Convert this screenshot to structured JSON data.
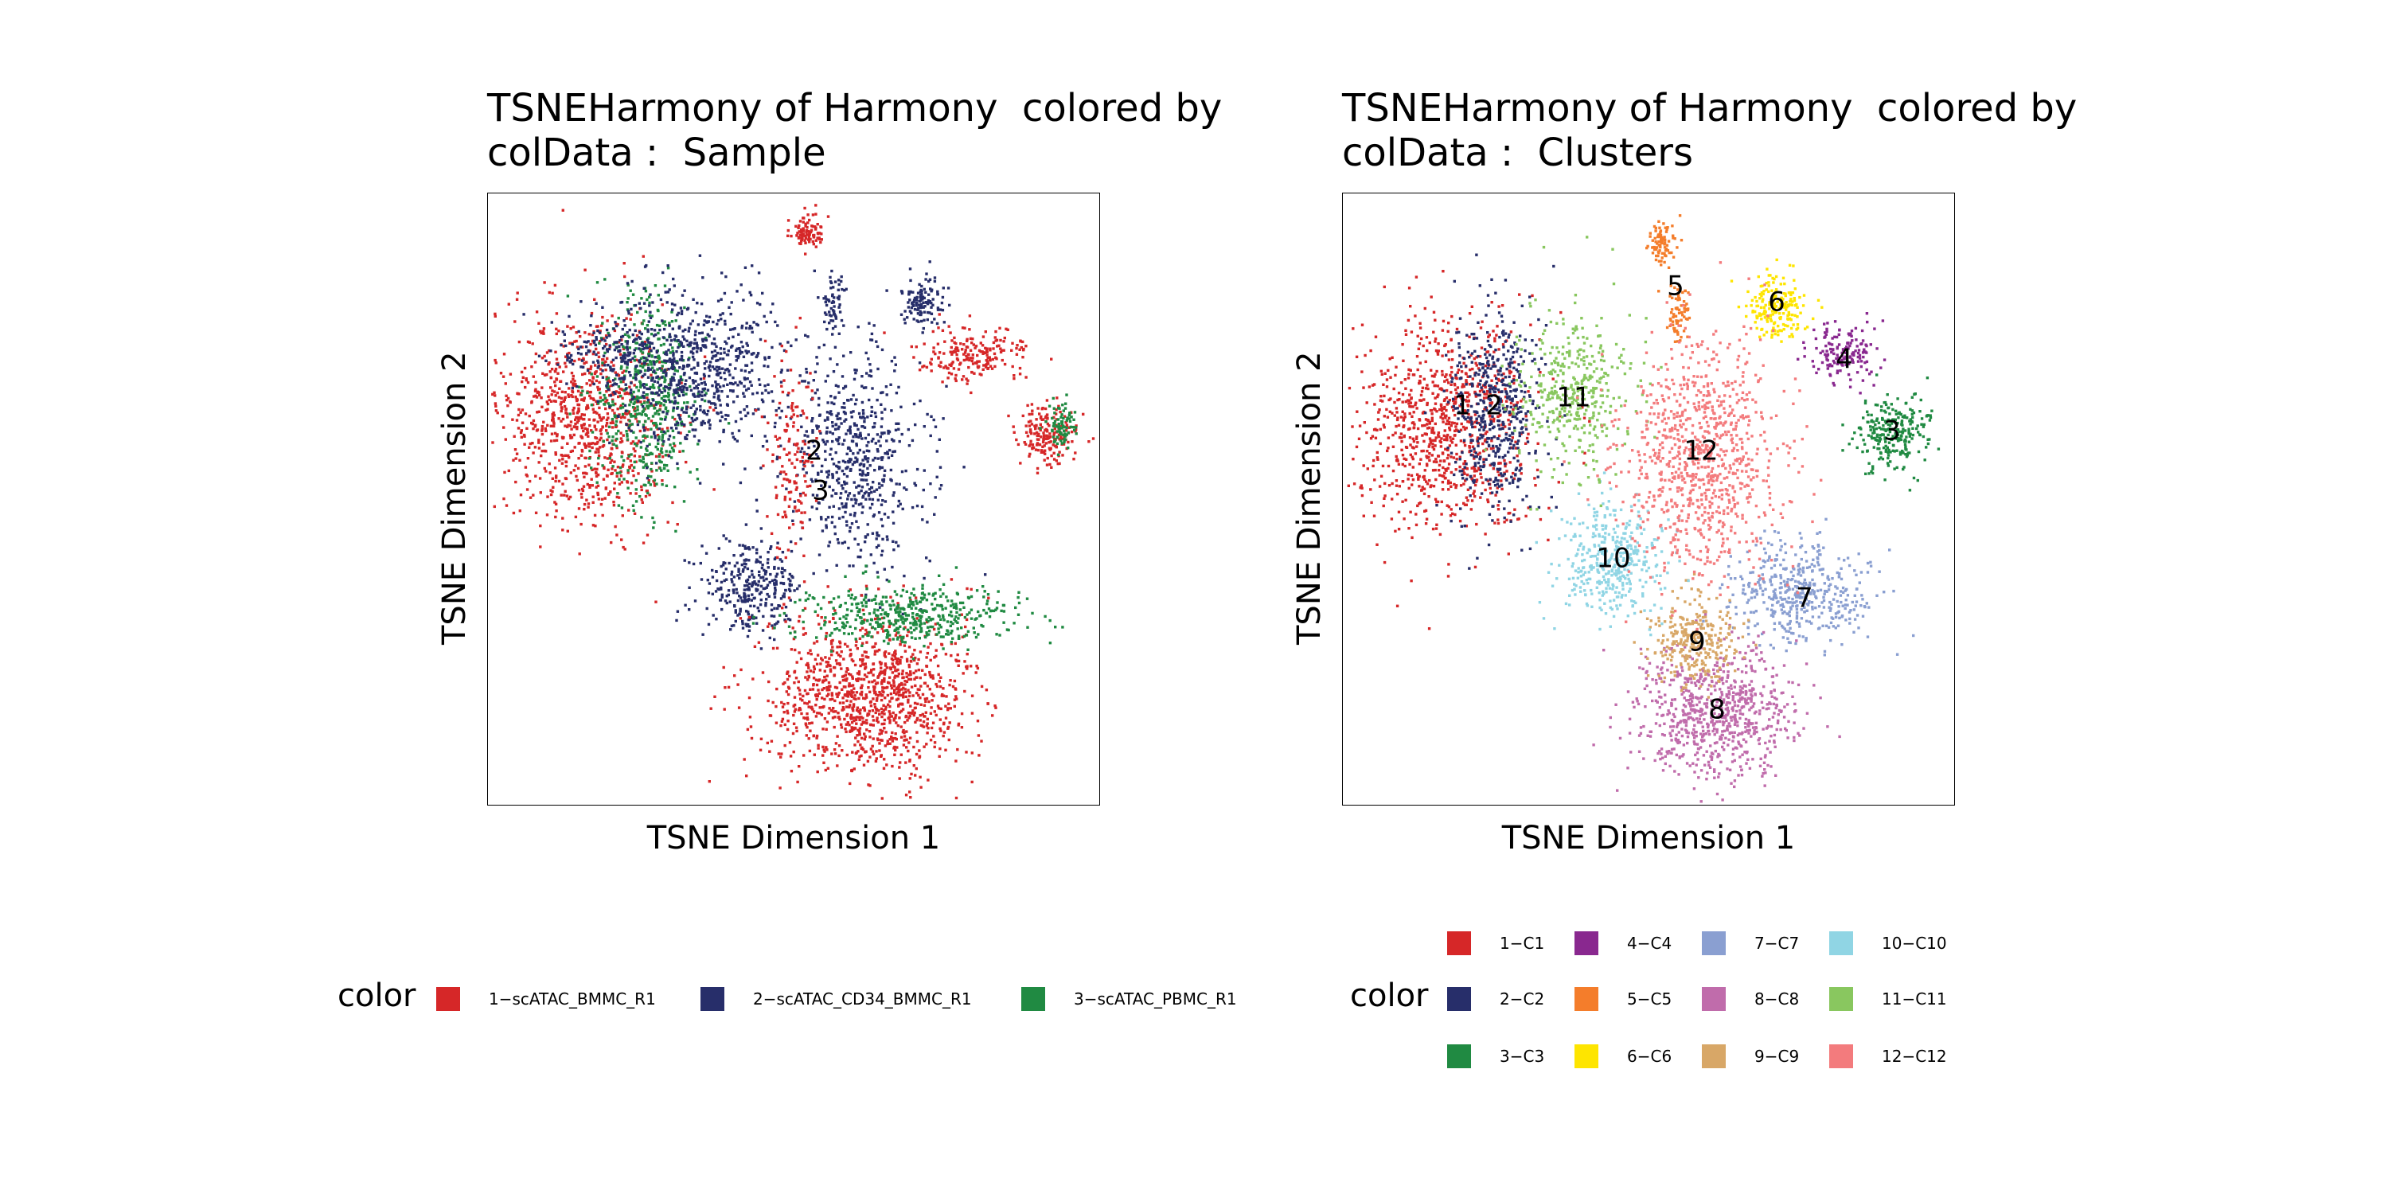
{
  "legend_title": "color",
  "chart_data": [
    {
      "type": "scatter",
      "title_line1": "TSNEHarmony of Harmony  colored by",
      "title_line2": "colData :  Sample",
      "xlabel": "TSNE Dimension 1",
      "ylabel": "TSNE Dimension 2",
      "grid": false,
      "legend_placement": "bottom",
      "series": [
        {
          "name": "1−scATAC_BMMC_R1",
          "color": "#D62728"
        },
        {
          "name": "2−scATAC_CD34_BMMC_R1",
          "color": "#272E6A"
        },
        {
          "name": "3−scATAC_PBMC_R1",
          "color": "#208A42"
        }
      ],
      "cluster_labels": [
        "2",
        "3"
      ]
    },
    {
      "type": "scatter",
      "title_line1": "TSNEHarmony of Harmony  colored by",
      "title_line2": "colData :  Clusters",
      "xlabel": "TSNE Dimension 1",
      "ylabel": "TSNE Dimension 2",
      "grid": false,
      "legend_placement": "bottom",
      "series": [
        {
          "name": "1−C1",
          "color": "#D62728"
        },
        {
          "name": "2−C2",
          "color": "#272E6A"
        },
        {
          "name": "3−C3",
          "color": "#208A42"
        },
        {
          "name": "4−C4",
          "color": "#89288F"
        },
        {
          "name": "5−C5",
          "color": "#F47D2B"
        },
        {
          "name": "6−C6",
          "color": "#FEE500"
        },
        {
          "name": "7−C7",
          "color": "#8A9FD1"
        },
        {
          "name": "8−C8",
          "color": "#C06CAB"
        },
        {
          "name": "9−C9",
          "color": "#D8A767"
        },
        {
          "name": "10−C10",
          "color": "#90D5E4"
        },
        {
          "name": "11−C11",
          "color": "#89C75F"
        },
        {
          "name": "12−C12",
          "color": "#F37B7D"
        }
      ],
      "cluster_labels": [
        "1",
        "2",
        "3",
        "4",
        "5",
        "6",
        "7",
        "8",
        "9",
        "10",
        "11",
        "12"
      ]
    }
  ]
}
